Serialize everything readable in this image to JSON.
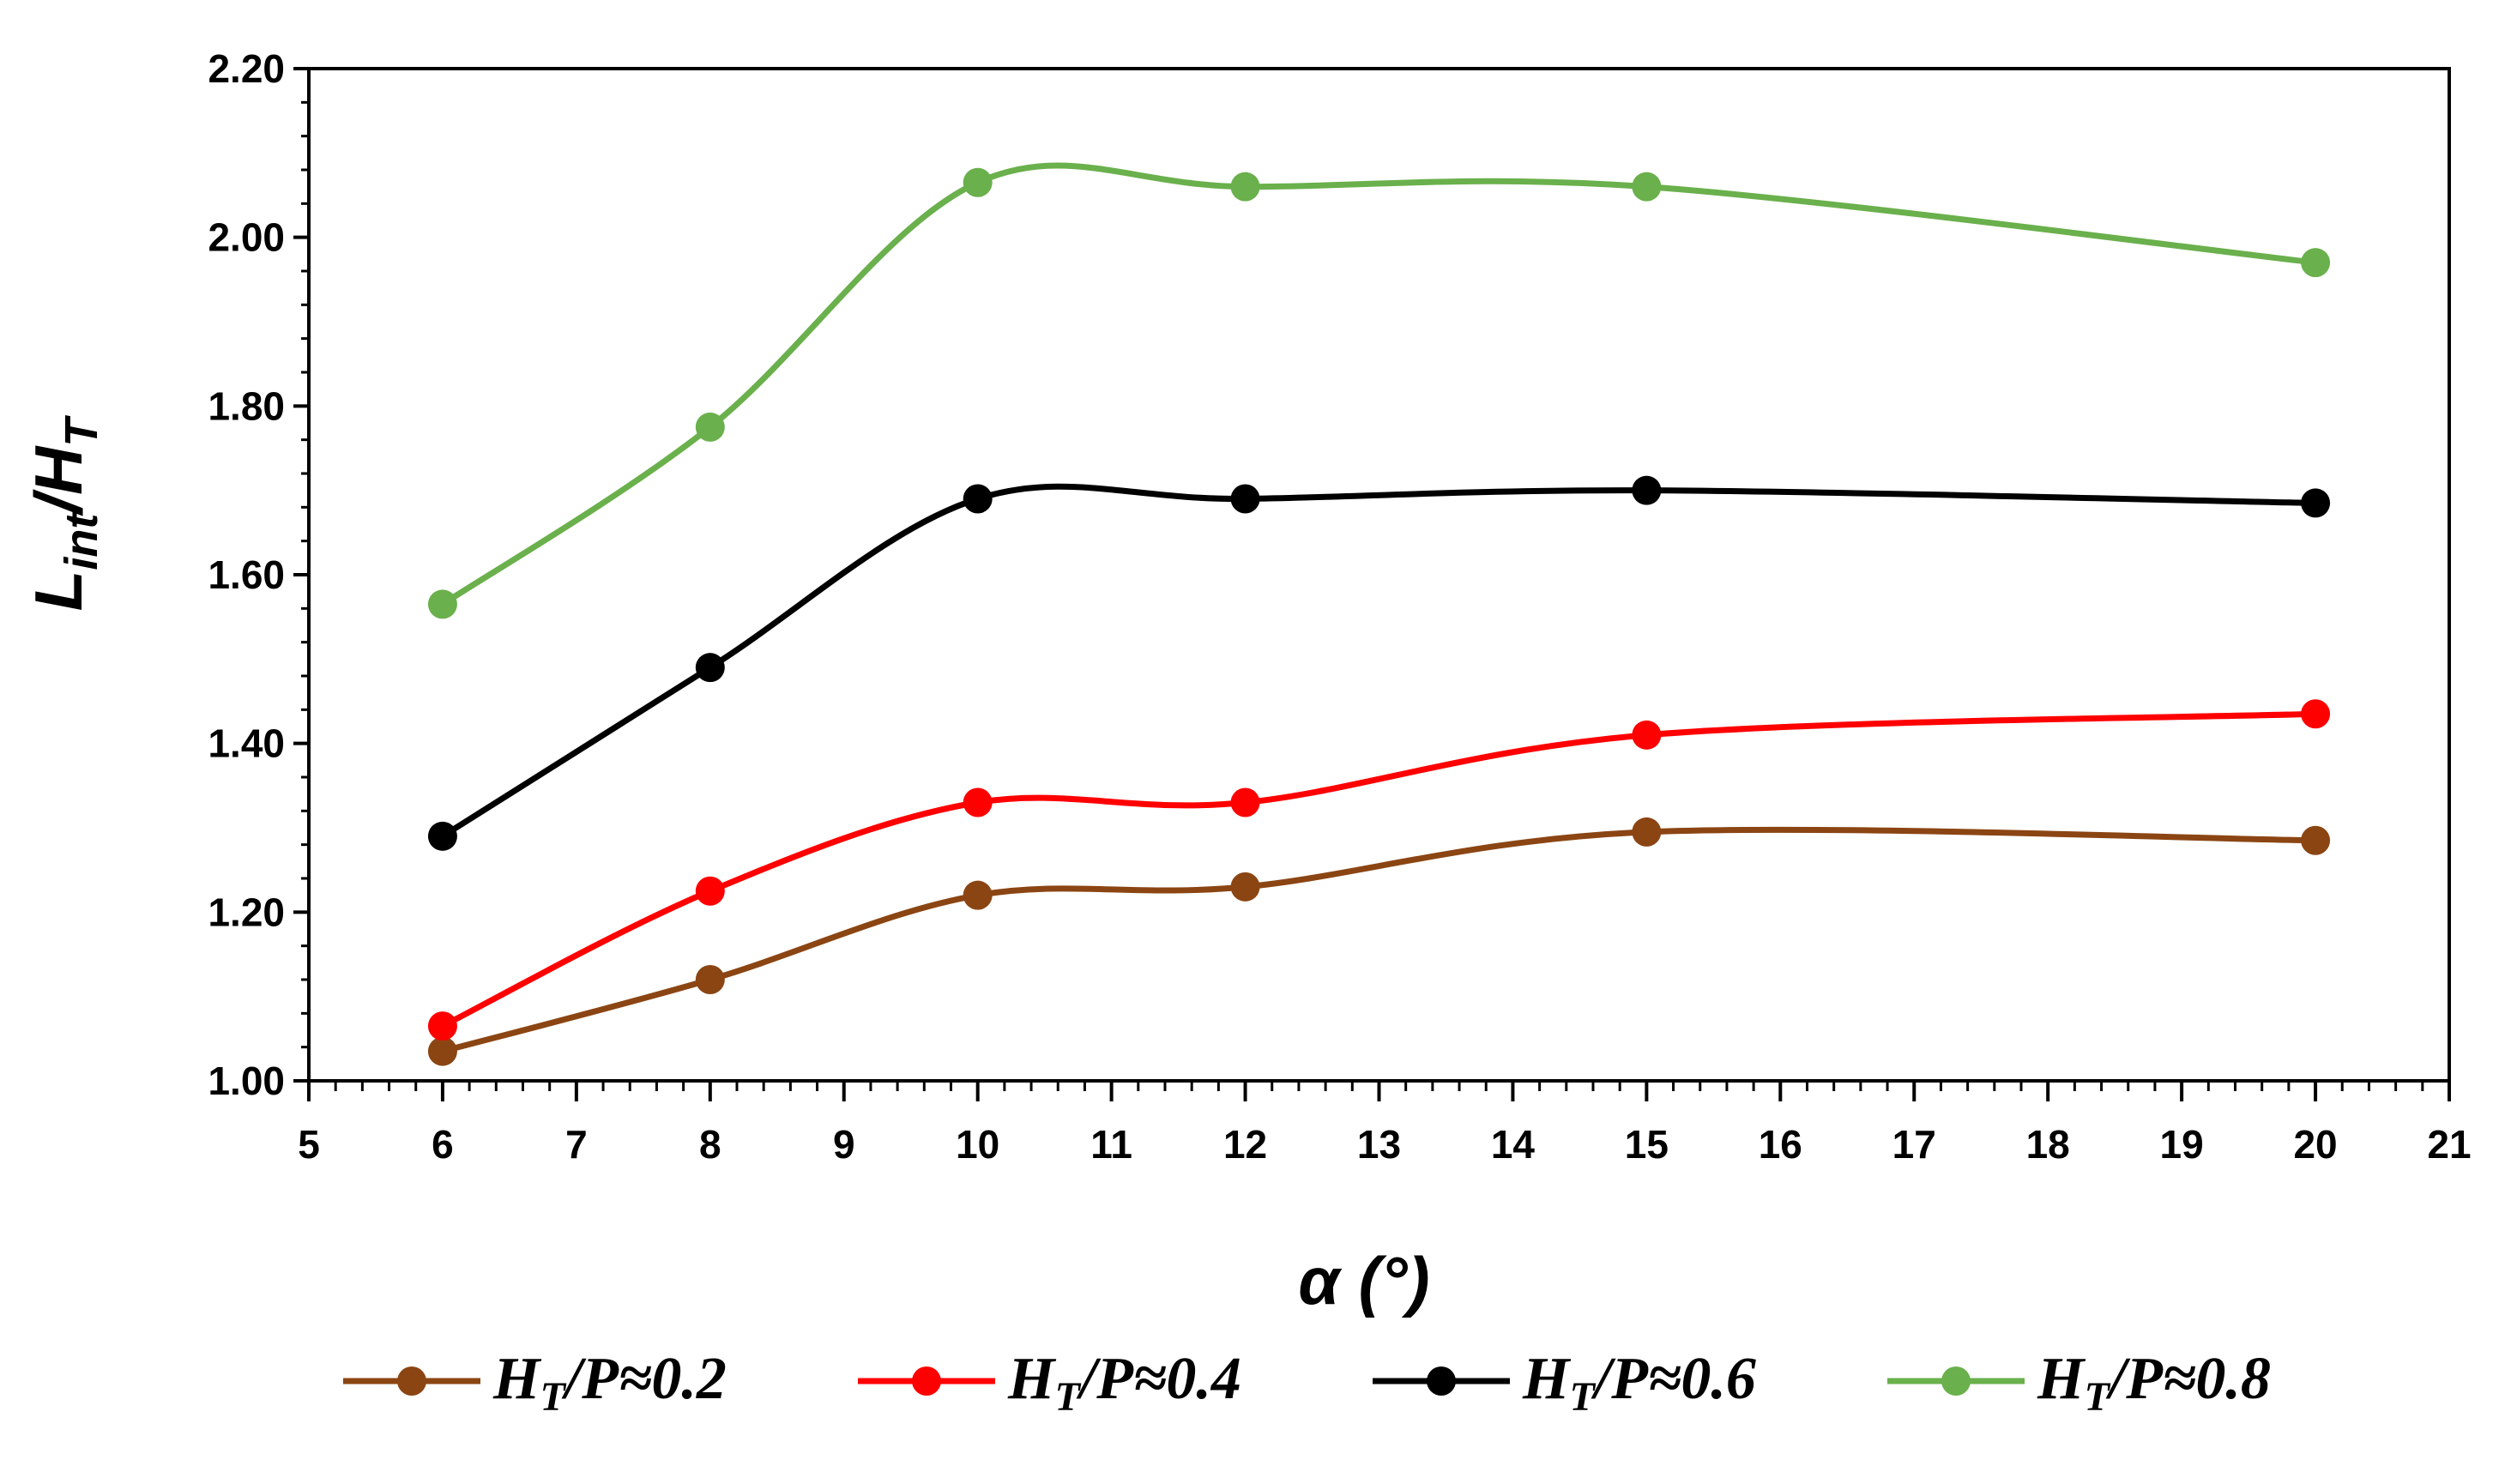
{
  "chart_data": {
    "type": "line",
    "title": "",
    "xlabel": "α (°)",
    "ylabel": {
      "main": "L",
      "sub1": "int",
      "slash": "/H",
      "sub2": "T"
    },
    "xlim": [
      5,
      21
    ],
    "ylim": [
      1.0,
      2.2
    ],
    "x_ticks": [
      "5",
      "6",
      "7",
      "8",
      "9",
      "10",
      "11",
      "12",
      "13",
      "14",
      "15",
      "16",
      "17",
      "18",
      "19",
      "20",
      "21"
    ],
    "y_ticks": [
      "1.00",
      "1.20",
      "1.40",
      "1.60",
      "1.80",
      "2.00",
      "2.20"
    ],
    "x": [
      6,
      8,
      10,
      12,
      15,
      20
    ],
    "series": [
      {
        "name": "HT/P≈0.2",
        "label": {
          "main": "H",
          "sub": "T",
          "rest": "/P≈0.2"
        },
        "color": "#8B4513",
        "values": [
          1.035,
          1.12,
          1.22,
          1.23,
          1.295,
          1.285
        ]
      },
      {
        "name": "HT/P≈0.4",
        "label": {
          "main": "H",
          "sub": "T",
          "rest": "/P≈0.4"
        },
        "color": "#FF0000",
        "values": [
          1.065,
          1.225,
          1.33,
          1.33,
          1.41,
          1.435
        ]
      },
      {
        "name": "HT/P≈0.6",
        "label": {
          "main": "H",
          "sub": "T",
          "rest": "/P≈0.6"
        },
        "color": "#000000",
        "values": [
          1.29,
          1.49,
          1.69,
          1.69,
          1.7,
          1.685
        ]
      },
      {
        "name": "HT/P≈0.8",
        "label": {
          "main": "H",
          "sub": "T",
          "rest": "/P≈0.8"
        },
        "color": "#6AB04C",
        "values": [
          1.565,
          1.775,
          2.065,
          2.06,
          2.06,
          1.97
        ]
      }
    ],
    "grid": false,
    "legend": "bottom",
    "smooth": true
  }
}
